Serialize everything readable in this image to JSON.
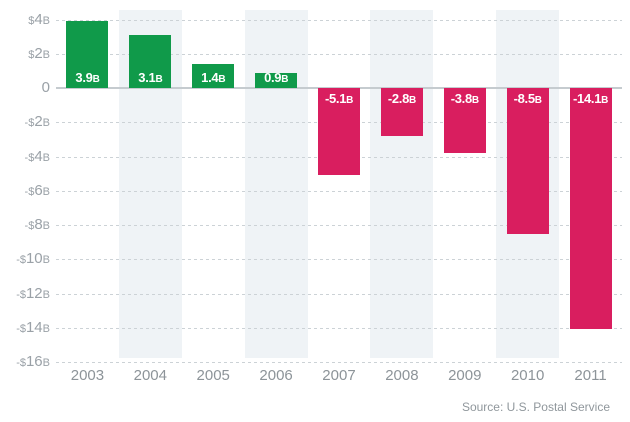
{
  "chart_data": {
    "type": "bar",
    "title": "",
    "xlabel": "",
    "ylabel": "",
    "categories": [
      "2003",
      "2004",
      "2005",
      "2006",
      "2007",
      "2008",
      "2009",
      "2010",
      "2011"
    ],
    "values": [
      3.9,
      3.1,
      1.4,
      0.9,
      -5.1,
      -2.8,
      -3.8,
      -8.5,
      -14.1
    ],
    "bar_labels": [
      "3.9B",
      "3.1B",
      "1.4B",
      "0.9B",
      "-5.1B",
      "-2.8B",
      "-3.8B",
      "-8.5B",
      "-14.1B"
    ],
    "unit": "billions of dollars",
    "ylim": [
      -16,
      4
    ],
    "y_tick_step": 2,
    "y_tick_values": [
      4,
      2,
      0,
      -2,
      -4,
      -6,
      -8,
      -10,
      -12,
      -14,
      -16
    ],
    "y_tick_labels": [
      "$4B",
      "$2B",
      "0",
      "-$2B",
      "-$4B",
      "-$6B",
      "-$8B",
      "-$10B",
      "-$12B",
      "-$14B",
      "-$16B"
    ],
    "grid": "horizontal-dashed",
    "legend": null,
    "striped_columns": [
      "2004",
      "2006",
      "2008",
      "2010"
    ],
    "source": "Source: U.S. Postal Service",
    "colors": {
      "positive_bar": "#109a4a",
      "negative_bar": "#d91e5f",
      "column_band": "#eff3f6",
      "gridline": "#ccd2d6",
      "zero_line": "#c5cbcf",
      "axis_tick_text": "#9aa1a7",
      "year_text": "#8d9499",
      "bar_label_text": "#ffffff",
      "source_text": "#90979c",
      "background": "#ffffff"
    }
  }
}
